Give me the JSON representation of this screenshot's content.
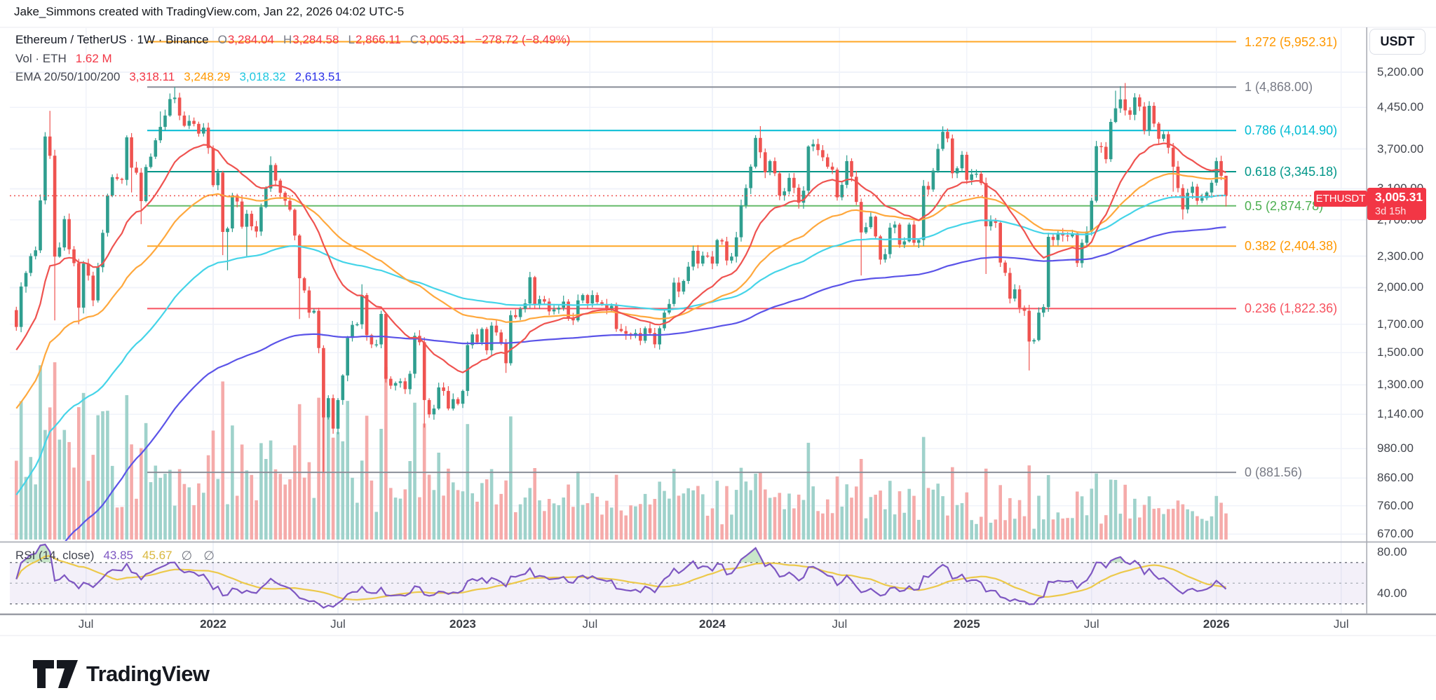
{
  "header": {
    "attribution": "Jake_Simmons created with TradingView.com, Jan 22, 2026 04:02 UTC-5"
  },
  "legend": {
    "title": "Ethereum / TetherUS · 1W · Binance",
    "ohlc": {
      "o_label": "O",
      "o": "3,284.04",
      "h_label": "H",
      "h": "3,284.58",
      "l_label": "L",
      "l": "2,866.11",
      "c_label": "C",
      "c": "3,005.31",
      "change": "−278.72 (−8.49%)"
    },
    "volume_label": "Vol · ETH",
    "volume_value": "1.62 M",
    "ema_label": "EMA 20/50/100/200",
    "ema_values": [
      {
        "value": "3,318.11",
        "color": "#f23645"
      },
      {
        "value": "3,248.29",
        "color": "#ff9800"
      },
      {
        "value": "3,018.32",
        "color": "#1fc7e0"
      },
      {
        "value": "2,613.51",
        "color": "#2c32e8"
      }
    ]
  },
  "rsi_legend": {
    "title": "RSI (14, close)",
    "value": "43.85",
    "value_color": "#7e57c2",
    "ma_value": "45.67",
    "ma_color": "#d9b83f",
    "placeholders": [
      "∅",
      "∅"
    ]
  },
  "price_axis": {
    "currency": "USDT",
    "ticks": [
      5200,
      4450,
      3700,
      3100,
      2700,
      2300,
      2000,
      1700,
      1500,
      1300,
      1140,
      980,
      860,
      760,
      670
    ],
    "symbol_tag": "ETHUSDT",
    "last_price": "3,005.31",
    "countdown": "3d 15h"
  },
  "rsi_axis": {
    "ticks": [
      80,
      40
    ]
  },
  "time_axis": [
    {
      "label": "Jul",
      "week": 14.5,
      "year": false
    },
    {
      "label": "2022",
      "week": 41,
      "year": true
    },
    {
      "label": "Jul",
      "week": 67,
      "year": false
    },
    {
      "label": "2023",
      "week": 93,
      "year": true
    },
    {
      "label": "Jul",
      "week": 119.5,
      "year": false
    },
    {
      "label": "2024",
      "week": 145,
      "year": true
    },
    {
      "label": "Jul",
      "week": 171.5,
      "year": false
    },
    {
      "label": "2025",
      "week": 198,
      "year": true
    },
    {
      "label": "Jul",
      "week": 224,
      "year": false
    },
    {
      "label": "2026",
      "week": 250,
      "year": true
    },
    {
      "label": "Jul",
      "week": 276,
      "year": false
    }
  ],
  "fib_levels": [
    {
      "level": "1.272",
      "price": 5952.31,
      "color": "#ff9800",
      "line_color": "#ffa726",
      "label": "1.272 (5,952.31)"
    },
    {
      "level": "1",
      "price": 4868.0,
      "color": "#787b86",
      "line_color": "#8a8e98",
      "label": "1 (4,868.00)"
    },
    {
      "level": "0.786",
      "price": 4014.9,
      "color": "#00bcd4",
      "line_color": "#00bcd4",
      "label": "0.786 (4,014.90)"
    },
    {
      "level": "0.618",
      "price": 3345.18,
      "color": "#009688",
      "line_color": "#009688",
      "label": "0.618 (3,345.18)"
    },
    {
      "level": "0.5",
      "price": 2874.78,
      "color": "#4caf50",
      "line_color": "#66bb6a",
      "label": "0.5 (2,874.78)"
    },
    {
      "level": "0.382",
      "price": 2404.38,
      "color": "#ff9800",
      "line_color": "#ffa726",
      "label": "0.382 (2,404.38)"
    },
    {
      "level": "0.236",
      "price": 1822.36,
      "color": "#f7525f",
      "line_color": "#f7525f",
      "label": "0.236 (1,822.36)"
    },
    {
      "level": "0",
      "price": 881.56,
      "color": "#787b86",
      "line_color": "#8a8e98",
      "label": "0 (881.56)"
    }
  ],
  "colors": {
    "up": "#2f9e8f",
    "down": "#ef5350",
    "vol_up": "#9fd2cb",
    "vol_down": "#f5abaa",
    "ema20": "#ef5350",
    "ema50": "#ffa83d",
    "ema100": "#45d4e8",
    "ema200": "#5b54e8",
    "grid": "#f0f3fa",
    "axis_text": "#42454d",
    "dotted_price": "#ef5350",
    "badge": "#f23645",
    "rsi_line": "#7e57c2",
    "rsi_ma": "#ecc94b",
    "rsi_band_fill": "rgba(126,87,194,0.09)",
    "rsi_overbought_fill": "rgba(76,175,80,0.30)",
    "rsi_dash": "#6b6f79",
    "rsi_mid_dash": "#b0b4bd",
    "separator": "#b4b7bf",
    "axis_line": "#9b9ea6",
    "border": "#e8eaef"
  },
  "chart_data": {
    "type": "candlestick",
    "title": "Ethereum / TetherUS",
    "symbol": "ETHUSDT",
    "exchange": "Binance",
    "timeframe": "1W",
    "scale": "log",
    "first_week": "2021-03-22",
    "first_open": 1810,
    "closes": [
      1680,
      2010,
      2135,
      2300,
      2360,
      2945,
      3910,
      3590,
      2295,
      2390,
      2710,
      2370,
      2230,
      1830,
      2225,
      2110,
      1890,
      2190,
      2550,
      3010,
      3265,
      3240,
      3225,
      3895,
      3405,
      3330,
      2935,
      3415,
      3575,
      3845,
      4080,
      4290,
      4615,
      4645,
      4290,
      4100,
      4190,
      4135,
      3960,
      4065,
      3715,
      3150,
      3330,
      2560,
      2600,
      3010,
      2930,
      2620,
      2775,
      2625,
      2565,
      2860,
      3105,
      3445,
      3215,
      3045,
      2940,
      2825,
      2520,
      2085,
      1975,
      1790,
      1805,
      1530,
      1125,
      1225,
      1070,
      1215,
      1355,
      1600,
      1695,
      1700,
      1935,
      1620,
      1555,
      1555,
      1780,
      1335,
      1295,
      1310,
      1320,
      1275,
      1365,
      1615,
      1570,
      1215,
      1140,
      1170,
      1285,
      1265,
      1170,
      1220,
      1195,
      1265,
      1550,
      1625,
      1570,
      1665,
      1515,
      1690,
      1640,
      1565,
      1430,
      1770,
      1755,
      1820,
      1865,
      2095,
      1850,
      1900,
      1880,
      1800,
      1815,
      1830,
      1880,
      1750,
      1730,
      1890,
      1935,
      1865,
      1935,
      1875,
      1855,
      1825,
      1845,
      1665,
      1650,
      1630,
      1615,
      1635,
      1580,
      1670,
      1635,
      1555,
      1670,
      1790,
      1860,
      2045,
      1965,
      2060,
      2195,
      2355,
      2225,
      2305,
      2295,
      2225,
      2470,
      2455,
      2255,
      2295,
      2500,
      2880,
      3110,
      3420,
      3885,
      3645,
      3335,
      3505,
      3320,
      3010,
      3065,
      3255,
      3115,
      2915,
      3075,
      3740,
      3780,
      3680,
      3565,
      3420,
      3375,
      2985,
      3155,
      3505,
      3270,
      2925,
      2555,
      2615,
      2740,
      2510,
      2265,
      2320,
      2610,
      2645,
      2420,
      2455,
      2645,
      2440,
      2470,
      3140,
      3090,
      3360,
      3700,
      3990,
      3875,
      3320,
      3395,
      3605,
      3225,
      3305,
      3315,
      3180,
      2625,
      2685,
      2665,
      2235,
      2135,
      1905,
      1985,
      1830,
      1805,
      1575,
      1585,
      1790,
      1835,
      2505,
      2470,
      2550,
      2520,
      2510,
      2545,
      2230,
      2440,
      2565,
      2940,
      3745,
      3735,
      3535,
      4170,
      4430,
      4610,
      4390,
      4305,
      4650,
      4465,
      4010,
      4480,
      4140,
      3870,
      3950,
      3720,
      3420,
      3110,
      2830,
      3045,
      3130,
      2940,
      2975,
      3050,
      3185,
      3505,
      3284.04,
      3005.31
    ],
    "wick_overrides": [
      [
        6,
        3985,
        null
      ],
      [
        7,
        4380,
        null
      ],
      [
        8,
        null,
        1730
      ],
      [
        13,
        null,
        1700
      ],
      [
        24,
        3970,
        3050
      ],
      [
        26,
        null,
        2650
      ],
      [
        30,
        4370,
        null
      ],
      [
        33,
        4868,
        null
      ],
      [
        43,
        null,
        2310
      ],
      [
        44,
        null,
        2160
      ],
      [
        48,
        null,
        2300
      ],
      [
        53,
        3580,
        null
      ],
      [
        59,
        null,
        1740
      ],
      [
        64,
        null,
        881.56
      ],
      [
        72,
        2030,
        null
      ],
      [
        85,
        null,
        1075
      ],
      [
        102,
        null,
        1370
      ],
      [
        107,
        2145,
        null
      ],
      [
        155,
        4093,
        null
      ],
      [
        176,
        null,
        2111
      ],
      [
        193,
        4090,
        null
      ],
      [
        202,
        null,
        2125
      ],
      [
        211,
        null,
        1385
      ],
      [
        229,
        4790,
        null
      ],
      [
        230,
        4888,
        null
      ],
      [
        231,
        4955,
        null
      ],
      [
        241,
        null,
        3060
      ],
      [
        243,
        null,
        2705
      ],
      [
        249,
        3220,
        null
      ],
      [
        250,
        3560,
        null
      ],
      [
        252,
        3284.58,
        2866.11
      ]
    ],
    "volume_overrides_m": [
      [
        6,
        6.8
      ],
      [
        7,
        8.2
      ],
      [
        8,
        11.0
      ],
      [
        9,
        6.2
      ],
      [
        59,
        8.4
      ],
      [
        63,
        8.8
      ],
      [
        64,
        11.6
      ],
      [
        65,
        8.0
      ],
      [
        72,
        4.9
      ],
      [
        85,
        7.2
      ],
      [
        107,
        3.2
      ],
      [
        152,
        3.6
      ],
      [
        155,
        4.2
      ],
      [
        166,
        3.3
      ],
      [
        176,
        5.0
      ],
      [
        190,
        3.2
      ],
      [
        202,
        4.4
      ],
      [
        211,
        4.6
      ],
      [
        215,
        4.0
      ],
      [
        225,
        4.1
      ],
      [
        229,
        3.7
      ],
      [
        231,
        3.4
      ],
      [
        252,
        1.62
      ]
    ],
    "last_candle": {
      "open": 3284.04,
      "high": 3284.58,
      "low": 2866.11,
      "close": 3005.31,
      "volume_m": 1.62,
      "change": -278.72,
      "change_pct": -8.49
    },
    "current_price": 3005.31,
    "price_ticks": [
      5200,
      4450,
      3700,
      3100,
      2700,
      2300,
      2000,
      1700,
      1500,
      1300,
      1140,
      980,
      860,
      760,
      670
    ],
    "indicators": {
      "ema_lengths": [
        20,
        50,
        100,
        200
      ],
      "ema_current": [
        3318.11,
        3248.29,
        3018.32,
        2613.51
      ],
      "ema_seeds": [
        1500,
        1150,
        780,
        420
      ],
      "rsi": {
        "length": 14,
        "source": "close",
        "value": 43.85,
        "ma_value": 45.67,
        "bands": [
          70,
          50,
          30
        ]
      }
    },
    "volume_unit": "M ETH",
    "ylim_log": [
      670,
      5200
    ]
  },
  "footer": {
    "brand": "TradingView"
  }
}
